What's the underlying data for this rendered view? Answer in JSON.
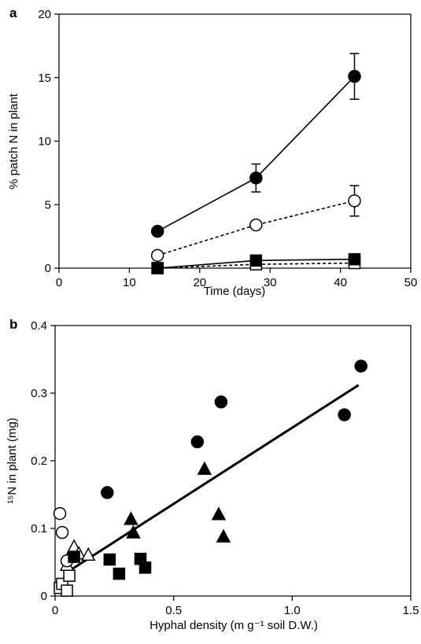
{
  "chart_data": [
    {
      "panel": "a",
      "type": "line",
      "xlabel": "Time (days)",
      "ylabel": "% patch N in plant",
      "xlim": [
        0,
        50
      ],
      "ylim": [
        0,
        20
      ],
      "xticks": [
        0,
        10,
        20,
        30,
        40,
        50
      ],
      "yticks": [
        0,
        5,
        10,
        15,
        20
      ],
      "series": [
        {
          "marker": "filled-circle",
          "line": "solid",
          "x": [
            14,
            28,
            42
          ],
          "y": [
            2.9,
            7.1,
            15.1
          ],
          "err": [
            0,
            1.1,
            1.8
          ]
        },
        {
          "marker": "open-circle",
          "line": "dashed",
          "x": [
            14,
            28,
            42
          ],
          "y": [
            1.0,
            3.4,
            5.3
          ],
          "err": [
            0,
            0,
            1.2
          ]
        },
        {
          "marker": "filled-square",
          "line": "solid",
          "x": [
            14,
            28,
            42
          ],
          "y": [
            0.0,
            0.6,
            0.7
          ],
          "err": [
            0,
            0,
            0
          ]
        },
        {
          "marker": "open-square",
          "line": "dashed",
          "x": [
            14,
            28,
            42
          ],
          "y": [
            0.0,
            0.3,
            0.4
          ],
          "err": [
            0,
            0,
            0
          ]
        }
      ]
    },
    {
      "panel": "b",
      "type": "scatter",
      "xlabel": "Hyphal density (m g⁻¹ soil D.W.)",
      "ylabel": "¹⁵N in plant (mg)",
      "xlim": [
        0,
        1.5
      ],
      "ylim": [
        0,
        0.4
      ],
      "xticks": [
        "0",
        "0.5",
        "1.0",
        "1.5"
      ],
      "yticks": [
        "0",
        "0.1",
        "0.2",
        "0.3",
        "0.4"
      ],
      "series": [
        {
          "marker": "filled-circle",
          "x": [
            0.22,
            0.6,
            0.7,
            1.22,
            1.29
          ],
          "y": [
            0.153,
            0.228,
            0.287,
            0.268,
            0.34
          ]
        },
        {
          "marker": "open-circle",
          "x": [
            0.02,
            0.03,
            0.05
          ],
          "y": [
            0.122,
            0.094,
            0.052
          ]
        },
        {
          "marker": "filled-triangle",
          "x": [
            0.32,
            0.33,
            0.63,
            0.69,
            0.71
          ],
          "y": [
            0.113,
            0.093,
            0.187,
            0.12,
            0.087
          ]
        },
        {
          "marker": "open-triangle",
          "x": [
            0.06,
            0.08,
            0.1,
            0.14,
            0.05
          ],
          "y": [
            0.058,
            0.072,
            0.062,
            0.06,
            0.045
          ]
        },
        {
          "marker": "filled-square",
          "x": [
            0.08,
            0.23,
            0.27,
            0.36,
            0.38
          ],
          "y": [
            0.058,
            0.054,
            0.033,
            0.055,
            0.042
          ]
        },
        {
          "marker": "open-square",
          "x": [
            0.02,
            0.03,
            0.05,
            0.06
          ],
          "y": [
            0.012,
            0.018,
            0.008,
            0.03
          ]
        }
      ],
      "fit_line": {
        "x": [
          0.05,
          1.28
        ],
        "y": [
          0.035,
          0.312
        ]
      }
    }
  ]
}
